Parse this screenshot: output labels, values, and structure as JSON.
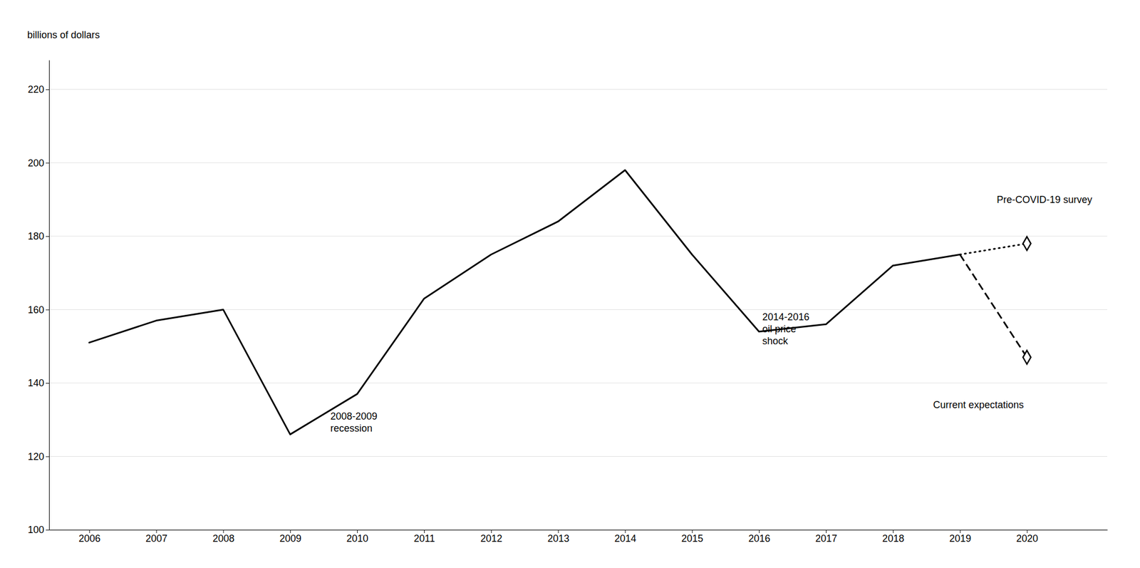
{
  "chart_data": {
    "type": "line",
    "ylabel": "billions of dollars",
    "xlim": [
      2005.4,
      2021.2
    ],
    "ylim": [
      100,
      228
    ],
    "xticks": [
      2006,
      2007,
      2008,
      2009,
      2010,
      2011,
      2012,
      2013,
      2014,
      2015,
      2016,
      2017,
      2018,
      2019,
      2020
    ],
    "yticks": [
      100,
      120,
      140,
      160,
      180,
      200,
      220
    ],
    "grid": true,
    "series": [
      {
        "type": "line",
        "line_style": "solid",
        "color": "#000000",
        "x": [
          2006,
          2007,
          2008,
          2009,
          2010,
          2011,
          2012,
          2013,
          2014,
          2015,
          2016,
          2017,
          2018,
          2019
        ],
        "values": [
          151,
          157,
          160,
          126,
          137,
          163,
          175,
          184,
          198,
          175,
          154,
          156,
          172,
          175
        ]
      },
      {
        "type": "line",
        "line_style": "dotted",
        "color": "#000000",
        "x": [
          2019,
          2020
        ],
        "values": [
          175,
          178
        ]
      },
      {
        "type": "line",
        "line_style": "dashed",
        "color": "#000000",
        "x": [
          2019,
          2020
        ],
        "values": [
          175,
          147
        ]
      },
      {
        "type": "scatter",
        "marker": "diamond",
        "color": "#000000",
        "x": [
          2020
        ],
        "values": [
          178
        ]
      },
      {
        "type": "scatter",
        "marker": "diamond",
        "color": "#000000",
        "x": [
          2020
        ],
        "values": [
          147
        ]
      }
    ],
    "annotations": [
      {
        "text": "2008-2009\nrecession",
        "x": 2009.6,
        "y": 132
      },
      {
        "text": "2014-2016\noil price\nshock",
        "x": 2016.05,
        "y": 159
      },
      {
        "text": "Pre-COVID-19 survey",
        "x": 2019.55,
        "y": 191
      },
      {
        "text": "Current expectations",
        "x": 2018.6,
        "y": 135
      }
    ]
  }
}
